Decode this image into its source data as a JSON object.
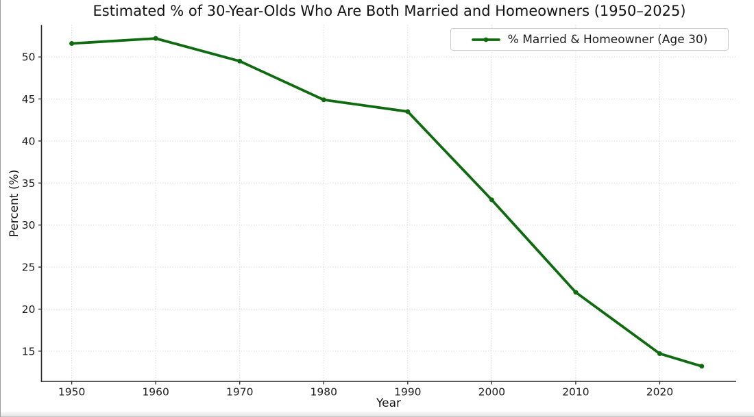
{
  "chart_data": {
    "type": "line",
    "title": "Estimated % of 30-Year-Olds Who Are Both Married and Homeowners (1950–2025)",
    "xlabel": "Year",
    "ylabel": "Percent (%)",
    "x": [
      1950,
      1960,
      1970,
      1980,
      1990,
      2000,
      2010,
      2020,
      2025
    ],
    "series": [
      {
        "name": "% Married & Homeowner (Age 30)",
        "values": [
          51.6,
          52.2,
          49.5,
          44.9,
          43.5,
          33.0,
          22.0,
          14.7,
          13.2
        ],
        "color": "#0f6b0f",
        "marker": "circle"
      }
    ],
    "x_ticks": [
      1950,
      1960,
      1970,
      1980,
      1990,
      2000,
      2010,
      2020
    ],
    "y_ticks": [
      15,
      20,
      25,
      30,
      35,
      40,
      45,
      50
    ],
    "xlim": [
      1946.4,
      2029.1
    ],
    "ylim": [
      11.4,
      53.8
    ],
    "grid": "dotted",
    "legend_position": "upper right",
    "background": "#ffffff"
  }
}
